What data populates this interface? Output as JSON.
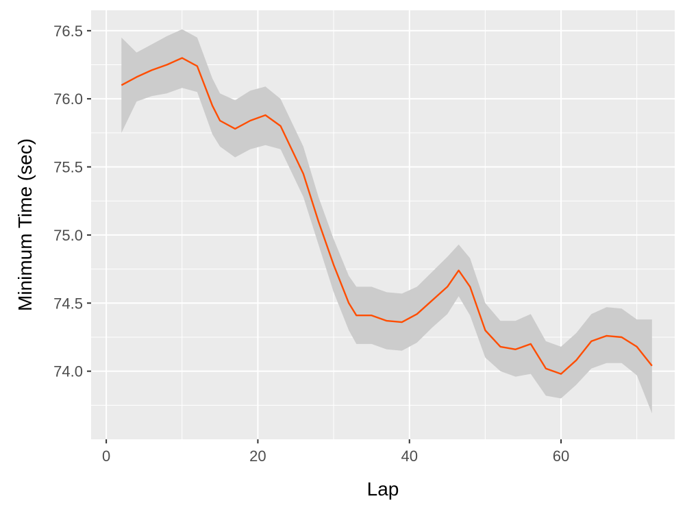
{
  "chart_data": {
    "type": "line",
    "xlabel": "Lap",
    "ylabel": "Minimum Time (sec)",
    "xlim": [
      -2,
      75
    ],
    "ylim": [
      73.5,
      76.65
    ],
    "x_ticks": [
      0,
      20,
      40,
      60
    ],
    "x_tick_labels": [
      "0",
      "20",
      "40",
      "60"
    ],
    "y_ticks": [
      74.0,
      74.5,
      75.0,
      75.5,
      76.0,
      76.5
    ],
    "y_tick_labels": [
      "74.0",
      "74.5",
      "75.0",
      "75.5",
      "76.0",
      "76.5"
    ],
    "grid": true,
    "series": [
      {
        "color": "#ff4d00",
        "band_color": "#cccccc",
        "x": [
          2,
          4,
          6,
          8,
          10,
          12,
          14,
          15,
          17,
          19,
          21,
          23,
          26,
          28,
          30,
          32,
          33,
          35,
          37,
          39,
          41,
          43,
          45,
          46.5,
          48,
          50,
          52,
          54,
          56,
          58,
          60,
          62,
          64,
          66,
          68,
          70,
          72
        ],
        "y": [
          76.1,
          76.16,
          76.21,
          76.25,
          76.3,
          76.24,
          75.95,
          75.84,
          75.78,
          75.84,
          75.88,
          75.8,
          75.45,
          75.1,
          74.78,
          74.5,
          74.41,
          74.41,
          74.37,
          74.36,
          74.42,
          74.52,
          74.62,
          74.74,
          74.62,
          74.3,
          74.18,
          74.16,
          74.2,
          74.02,
          73.98,
          74.08,
          74.22,
          74.26,
          74.25,
          74.18,
          74.04
        ],
        "lower": [
          75.75,
          75.98,
          76.02,
          76.04,
          76.08,
          76.05,
          75.74,
          75.65,
          75.57,
          75.63,
          75.66,
          75.63,
          75.28,
          74.93,
          74.58,
          74.3,
          74.2,
          74.2,
          74.16,
          74.15,
          74.21,
          74.32,
          74.42,
          74.55,
          74.41,
          74.1,
          74.0,
          73.96,
          73.98,
          73.82,
          73.8,
          73.9,
          74.02,
          74.06,
          74.06,
          73.97,
          73.69
        ],
        "upper": [
          76.45,
          76.34,
          76.4,
          76.46,
          76.51,
          76.45,
          76.15,
          76.04,
          75.99,
          76.06,
          76.09,
          76.0,
          75.65,
          75.28,
          74.97,
          74.7,
          74.62,
          74.62,
          74.58,
          74.57,
          74.62,
          74.73,
          74.84,
          74.93,
          74.83,
          74.5,
          74.37,
          74.37,
          74.42,
          74.22,
          74.18,
          74.28,
          74.42,
          74.47,
          74.46,
          74.38,
          74.38
        ]
      }
    ]
  }
}
